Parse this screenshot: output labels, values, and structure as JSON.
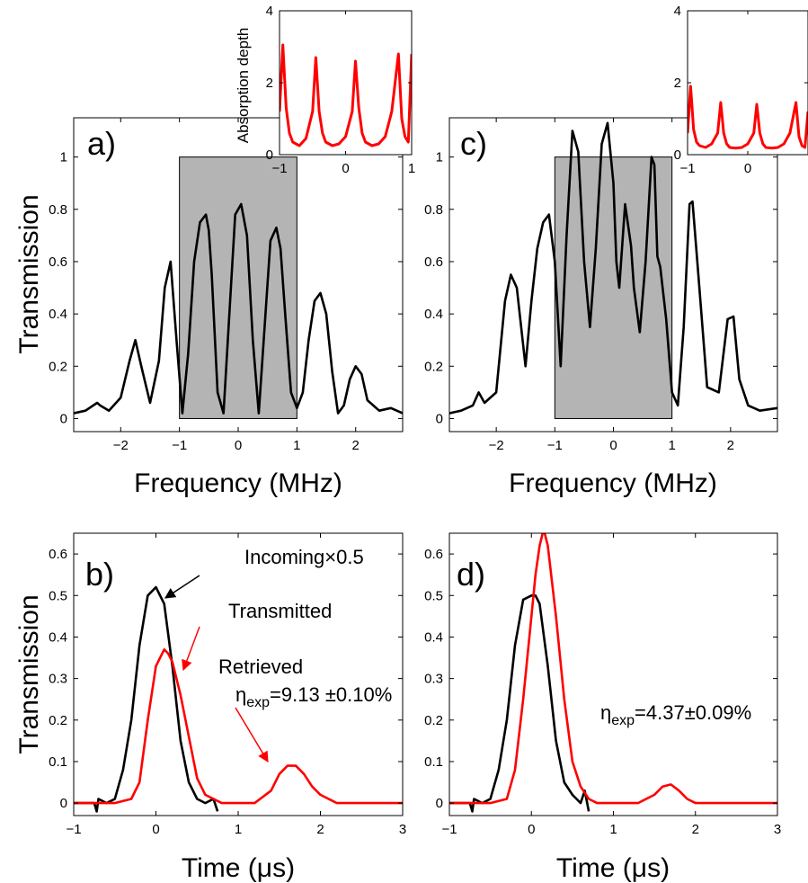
{
  "chart_data": [
    {
      "id": "a",
      "type": "line",
      "panel_label": "a)",
      "xlabel": "Frequency (MHz)",
      "ylabel": "Transmission",
      "xlim": [
        -2.8,
        2.8
      ],
      "ylim": [
        -0.05,
        1.15
      ],
      "xticks": [
        -2,
        -1,
        0,
        1,
        2
      ],
      "xtick_labels": [
        "−2",
        "−1",
        "0",
        "1",
        "2"
      ],
      "yticks": [
        0,
        0.2,
        0.4,
        0.6,
        0.8,
        1
      ],
      "ytick_labels": [
        "0",
        "0.2",
        "0.4",
        "0.6",
        "0.8",
        "1"
      ],
      "shaded_region": {
        "x": [
          -1,
          1
        ],
        "y": [
          0,
          1
        ],
        "color": "#b4b4b4"
      },
      "series": [
        {
          "color": "#000000",
          "x": [
            -2.8,
            -2.6,
            -2.4,
            -2.35,
            -2.2,
            -2.0,
            -1.85,
            -1.75,
            -1.65,
            -1.5,
            -1.35,
            -1.25,
            -1.15,
            -1.05,
            -0.95,
            -0.85,
            -0.75,
            -0.65,
            -0.55,
            -0.5,
            -0.45,
            -0.35,
            -0.25,
            -0.15,
            -0.05,
            0.05,
            0.15,
            0.25,
            0.35,
            0.45,
            0.55,
            0.65,
            0.72,
            0.8,
            0.9,
            1.0,
            1.1,
            1.2,
            1.3,
            1.4,
            1.5,
            1.6,
            1.7,
            1.8,
            1.9,
            2.0,
            2.1,
            2.2,
            2.4,
            2.6,
            2.8
          ],
          "y": [
            0.02,
            0.03,
            0.06,
            0.05,
            0.03,
            0.08,
            0.22,
            0.3,
            0.2,
            0.06,
            0.22,
            0.5,
            0.6,
            0.3,
            0.02,
            0.25,
            0.6,
            0.75,
            0.78,
            0.72,
            0.55,
            0.1,
            0.02,
            0.4,
            0.78,
            0.82,
            0.7,
            0.3,
            0.02,
            0.35,
            0.68,
            0.73,
            0.65,
            0.4,
            0.1,
            0.04,
            0.1,
            0.3,
            0.45,
            0.48,
            0.4,
            0.18,
            0.02,
            0.05,
            0.15,
            0.2,
            0.17,
            0.07,
            0.03,
            0.04,
            0.02
          ]
        }
      ]
    },
    {
      "id": "c",
      "type": "line",
      "panel_label": "c)",
      "xlabel": "Frequency (MHz)",
      "ylabel": "",
      "xlim": [
        -2.8,
        2.8
      ],
      "ylim": [
        -0.05,
        1.15
      ],
      "xticks": [
        -2,
        -1,
        0,
        1,
        2
      ],
      "xtick_labels": [
        "−2",
        "−1",
        "0",
        "1",
        "2"
      ],
      "yticks": [
        0,
        0.2,
        0.4,
        0.6,
        0.8,
        1
      ],
      "ytick_labels": [
        "0",
        "0.2",
        "0.4",
        "0.6",
        "0.8",
        "1"
      ],
      "shaded_region": {
        "x": [
          -1,
          1
        ],
        "y": [
          0,
          1
        ],
        "color": "#b4b4b4"
      },
      "series": [
        {
          "color": "#000000",
          "x": [
            -2.8,
            -2.6,
            -2.4,
            -2.3,
            -2.2,
            -2.0,
            -1.85,
            -1.75,
            -1.65,
            -1.5,
            -1.4,
            -1.3,
            -1.2,
            -1.1,
            -1.0,
            -0.9,
            -0.8,
            -0.7,
            -0.6,
            -0.5,
            -0.4,
            -0.3,
            -0.2,
            -0.1,
            0.0,
            0.05,
            0.1,
            0.2,
            0.3,
            0.35,
            0.45,
            0.55,
            0.65,
            0.7,
            0.75,
            0.8,
            0.9,
            1.0,
            1.1,
            1.2,
            1.3,
            1.35,
            1.45,
            1.6,
            1.8,
            1.95,
            2.05,
            2.15,
            2.3,
            2.5,
            2.8
          ],
          "y": [
            0.02,
            0.03,
            0.05,
            0.1,
            0.06,
            0.1,
            0.45,
            0.55,
            0.5,
            0.2,
            0.45,
            0.65,
            0.75,
            0.78,
            0.6,
            0.2,
            0.7,
            1.1,
            1.02,
            0.6,
            0.35,
            0.65,
            1.05,
            1.13,
            0.9,
            0.6,
            0.5,
            0.82,
            0.66,
            0.5,
            0.33,
            0.6,
            1.0,
            0.97,
            0.62,
            0.58,
            0.38,
            0.1,
            0.05,
            0.35,
            0.82,
            0.83,
            0.55,
            0.12,
            0.1,
            0.38,
            0.39,
            0.15,
            0.05,
            0.03,
            0.04
          ]
        }
      ]
    },
    {
      "id": "a-inset",
      "type": "line",
      "ylabel": "Absorption depth",
      "xlim": [
        -1,
        1
      ],
      "ylim": [
        0,
        4
      ],
      "xticks": [
        -1,
        0,
        1
      ],
      "xtick_labels": [
        "−1",
        "0",
        "1"
      ],
      "yticks": [
        0,
        2,
        4
      ],
      "ytick_labels": [
        "0",
        "2",
        "4"
      ],
      "series": [
        {
          "color": "#ff0000",
          "x": [
            -1.0,
            -0.95,
            -0.9,
            -0.85,
            -0.8,
            -0.7,
            -0.6,
            -0.5,
            -0.45,
            -0.4,
            -0.35,
            -0.3,
            -0.2,
            -0.1,
            0.0,
            0.1,
            0.15,
            0.2,
            0.25,
            0.3,
            0.4,
            0.5,
            0.6,
            0.7,
            0.8,
            0.85,
            0.9,
            0.95,
            1.0
          ],
          "y": [
            1.2,
            3.05,
            1.3,
            0.6,
            0.35,
            0.25,
            0.45,
            1.2,
            2.7,
            1.2,
            0.6,
            0.35,
            0.25,
            0.3,
            0.5,
            1.2,
            2.6,
            1.3,
            0.6,
            0.35,
            0.25,
            0.3,
            0.5,
            1.2,
            2.8,
            1.0,
            0.5,
            0.35,
            2.8
          ]
        }
      ]
    },
    {
      "id": "c-inset",
      "type": "line",
      "ylabel": "",
      "xlim": [
        -1,
        1
      ],
      "ylim": [
        0,
        4
      ],
      "xticks": [
        -1,
        0
      ],
      "xtick_labels": [
        "−1",
        "0"
      ],
      "yticks": [
        0,
        2,
        4
      ],
      "ytick_labels": [
        "0",
        "2",
        "4"
      ],
      "series": [
        {
          "color": "#ff0000",
          "x": [
            -1.0,
            -0.95,
            -0.9,
            -0.85,
            -0.8,
            -0.7,
            -0.6,
            -0.5,
            -0.45,
            -0.4,
            -0.35,
            -0.3,
            -0.2,
            -0.1,
            0.0,
            0.1,
            0.15,
            0.2,
            0.25,
            0.3,
            0.4,
            0.5,
            0.6,
            0.7,
            0.8,
            0.85,
            0.9,
            0.95,
            1.0
          ],
          "y": [
            0.6,
            1.9,
            0.7,
            0.35,
            0.25,
            0.2,
            0.3,
            0.6,
            1.45,
            0.6,
            0.3,
            0.2,
            0.18,
            0.2,
            0.3,
            0.6,
            1.4,
            0.6,
            0.3,
            0.2,
            0.18,
            0.2,
            0.3,
            0.6,
            1.45,
            0.5,
            0.25,
            0.2,
            1.2
          ]
        }
      ]
    },
    {
      "id": "b",
      "type": "line",
      "panel_label": "b)",
      "xlabel": "Time (μs)",
      "ylabel": "Transmission",
      "xlim": [
        -1,
        3
      ],
      "ylim": [
        -0.03,
        0.65
      ],
      "xticks": [
        -1,
        0,
        1,
        2,
        3
      ],
      "xtick_labels": [
        "−1",
        "0",
        "1",
        "2",
        "3"
      ],
      "yticks": [
        0,
        0.1,
        0.2,
        0.3,
        0.4,
        0.5,
        0.6
      ],
      "ytick_labels": [
        "0",
        "0.1",
        "0.2",
        "0.3",
        "0.4",
        "0.5",
        "0.6"
      ],
      "series": [
        {
          "name": "Incoming×0.5",
          "color": "#000000",
          "x": [
            -1.0,
            -0.75,
            -0.72,
            -0.7,
            -0.6,
            -0.5,
            -0.4,
            -0.3,
            -0.2,
            -0.1,
            0.0,
            0.05,
            0.1,
            0.2,
            0.3,
            0.4,
            0.5,
            0.6,
            0.7,
            0.75
          ],
          "y": [
            0.0,
            0.0,
            -0.02,
            0.01,
            0.0,
            0.01,
            0.08,
            0.2,
            0.38,
            0.5,
            0.52,
            0.5,
            0.48,
            0.33,
            0.15,
            0.05,
            0.01,
            0.0,
            0.01,
            -0.02
          ]
        },
        {
          "name": "Transmitted",
          "color": "#ff0000",
          "x": [
            -1.0,
            -0.5,
            -0.3,
            -0.2,
            -0.1,
            0.0,
            0.1,
            0.15,
            0.2,
            0.3,
            0.4,
            0.5,
            0.6,
            0.7,
            0.8,
            1.0,
            1.2,
            1.4,
            1.5,
            1.6,
            1.7,
            1.8,
            1.9,
            2.0,
            2.2,
            2.5,
            3.0
          ],
          "y": [
            0.0,
            0.0,
            0.01,
            0.05,
            0.2,
            0.33,
            0.37,
            0.36,
            0.34,
            0.26,
            0.16,
            0.06,
            0.02,
            0.01,
            0.0,
            0.0,
            0.0,
            0.03,
            0.07,
            0.09,
            0.09,
            0.07,
            0.04,
            0.02,
            0.0,
            0.0,
            0.0
          ]
        }
      ],
      "annotations": [
        {
          "text": "Incoming×0.5",
          "x": 0.45,
          "y": 0.6,
          "arrow_to": [
            0.02,
            0.51
          ]
        },
        {
          "text": "Transmitted",
          "x": 0.95,
          "y": 0.48,
          "arrow_to": [
            0.33,
            0.34
          ]
        },
        {
          "text": "Retrieved",
          "x": 1.6,
          "y": 0.33
        },
        {
          "text": "ηexp=9.13 ±0.10%",
          "x": 1.5,
          "y": 0.27,
          "arrow_to": [
            1.42,
            0.07
          ]
        }
      ]
    },
    {
      "id": "d",
      "type": "line",
      "panel_label": "d)",
      "xlabel": "Time (μs)",
      "ylabel": "",
      "xlim": [
        -1,
        3
      ],
      "ylim": [
        -0.03,
        0.65
      ],
      "xticks": [
        -1,
        0,
        1,
        2,
        3
      ],
      "xtick_labels": [
        "−1",
        "0",
        "1",
        "2",
        "3"
      ],
      "yticks": [
        0,
        0.1,
        0.2,
        0.3,
        0.4,
        0.5,
        0.6
      ],
      "ytick_labels": [
        "0",
        "0.1",
        "0.2",
        "0.3",
        "0.4",
        "0.5",
        "0.6"
      ],
      "series": [
        {
          "color": "#000000",
          "x": [
            -1.0,
            -0.75,
            -0.72,
            -0.7,
            -0.6,
            -0.5,
            -0.4,
            -0.3,
            -0.2,
            -0.1,
            0.0,
            0.05,
            0.1,
            0.2,
            0.3,
            0.4,
            0.5,
            0.6,
            0.65,
            0.7
          ],
          "y": [
            0.0,
            0.0,
            -0.02,
            0.01,
            0.0,
            0.01,
            0.08,
            0.2,
            0.38,
            0.49,
            0.5,
            0.5,
            0.48,
            0.33,
            0.15,
            0.05,
            0.02,
            0.0,
            0.03,
            -0.02
          ]
        },
        {
          "color": "#ff0000",
          "x": [
            -1.0,
            -0.5,
            -0.3,
            -0.2,
            -0.1,
            0.0,
            0.05,
            0.1,
            0.15,
            0.2,
            0.3,
            0.4,
            0.5,
            0.6,
            0.7,
            0.8,
            1.0,
            1.3,
            1.5,
            1.6,
            1.7,
            1.8,
            1.9,
            2.0,
            2.5,
            3.0
          ],
          "y": [
            0.0,
            0.0,
            0.01,
            0.08,
            0.25,
            0.45,
            0.55,
            0.62,
            0.66,
            0.62,
            0.45,
            0.25,
            0.1,
            0.04,
            0.01,
            0.0,
            0.0,
            0.0,
            0.02,
            0.04,
            0.045,
            0.03,
            0.01,
            0.0,
            0.0,
            0.0
          ]
        }
      ],
      "annotations": [
        {
          "text": "ηexp=4.37±0.09%",
          "x": 0.7,
          "y": 0.2
        }
      ]
    }
  ],
  "texts": {
    "a_label": "a)",
    "c_label": "c)",
    "b_label": "b)",
    "d_label": "d)",
    "freq_xlabel": "Frequency (MHz)",
    "time_xlabel": "Time (μs)",
    "trans_ylabel": "Transmission",
    "inset_ylabel": "Absorption depth",
    "incoming": "Incoming×0.5",
    "transmitted": "Transmitted",
    "retrieved": "Retrieved",
    "eta_b_sym": "η",
    "eta_b_sub": "exp",
    "eta_b_val": "=9.13 ±0.10%",
    "eta_d_sym": "η",
    "eta_d_sub": "exp",
    "eta_d_val": "=4.37±0.09%"
  }
}
